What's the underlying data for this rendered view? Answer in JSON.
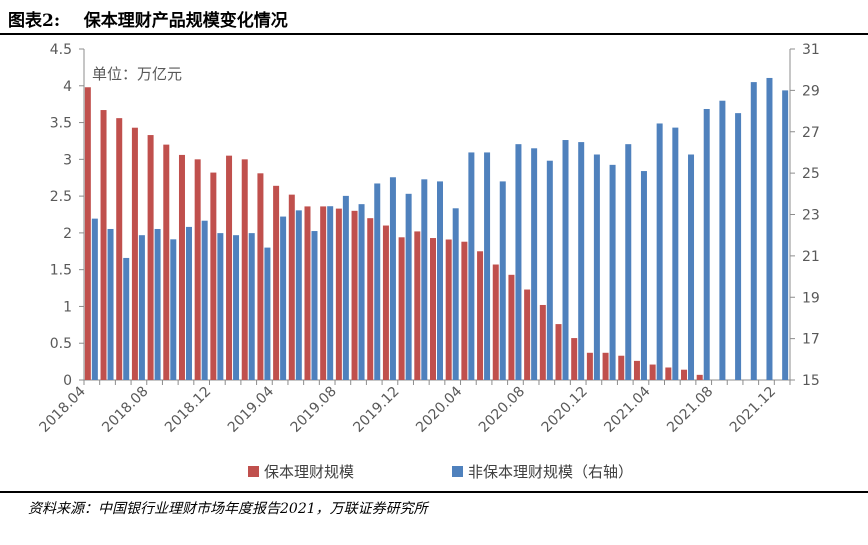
{
  "figure": {
    "title": "图表2:    保本理财产品规模变化情况",
    "source": "资料来源：中国银行业理财市场年度报告2021，万联证券研究所"
  },
  "chart_data": {
    "type": "bar",
    "unit_label": "单位：万亿元",
    "categories": [
      "2018.04",
      "2018.05",
      "2018.06",
      "2018.07",
      "2018.08",
      "2018.09",
      "2018.10",
      "2018.11",
      "2018.12",
      "2019.01",
      "2019.02",
      "2019.03",
      "2019.04",
      "2019.05",
      "2019.06",
      "2019.07",
      "2019.08",
      "2019.09",
      "2019.10",
      "2019.11",
      "2019.12",
      "2020.01",
      "2020.02",
      "2020.03",
      "2020.04",
      "2020.05",
      "2020.06",
      "2020.07",
      "2020.08",
      "2020.09",
      "2020.10",
      "2020.11",
      "2020.12",
      "2021.01",
      "2021.02",
      "2021.03",
      "2021.04",
      "2021.05",
      "2021.06",
      "2021.07",
      "2021.08",
      "2021.09",
      "2021.10",
      "2021.11",
      "2021.12"
    ],
    "x_tick_labels": [
      "2018.04",
      "2018.08",
      "2018.12",
      "2019.04",
      "2019.08",
      "2019.12",
      "2020.04",
      "2020.08",
      "2020.12",
      "2021.04",
      "2021.08",
      "2021.12"
    ],
    "y_left": {
      "min": 0,
      "max": 4.5,
      "step": 0.5,
      "ticks": [
        "0",
        "0.5",
        "1",
        "1.5",
        "2",
        "2.5",
        "3",
        "3.5",
        "4",
        "4.5"
      ]
    },
    "y_right": {
      "min": 15,
      "max": 31,
      "step": 2,
      "ticks": [
        "15",
        "17",
        "19",
        "21",
        "23",
        "25",
        "27",
        "29",
        "31"
      ]
    },
    "series": [
      {
        "name": "保本理财规模",
        "axis": "left",
        "color": "#c0504d",
        "values": [
          3.98,
          3.67,
          3.56,
          3.43,
          3.33,
          3.2,
          3.06,
          3.0,
          2.82,
          3.05,
          3.0,
          2.81,
          2.64,
          2.52,
          2.36,
          2.36,
          2.33,
          2.3,
          2.2,
          2.1,
          1.94,
          2.02,
          1.93,
          1.91,
          1.88,
          1.75,
          1.57,
          1.43,
          1.23,
          1.02,
          0.76,
          0.57,
          0.37,
          0.37,
          0.33,
          0.26,
          0.21,
          0.17,
          0.14,
          0.07,
          0,
          0,
          0,
          0,
          0
        ]
      },
      {
        "name": "非保本理财规模（右轴）",
        "axis": "right",
        "color": "#4f81bd",
        "values": [
          22.8,
          22.3,
          20.9,
          22.0,
          22.3,
          21.8,
          22.4,
          22.7,
          22.1,
          22.0,
          22.1,
          21.4,
          22.9,
          23.2,
          22.2,
          23.4,
          23.9,
          23.5,
          24.5,
          24.8,
          24.0,
          24.7,
          24.6,
          23.3,
          26.0,
          26.0,
          24.6,
          26.4,
          26.2,
          25.6,
          26.6,
          26.5,
          25.9,
          25.4,
          26.4,
          25.1,
          27.4,
          27.2,
          25.9,
          28.1,
          28.5,
          27.9,
          29.4,
          29.6,
          29.0
        ]
      }
    ],
    "grid": false,
    "legend_position": "bottom"
  }
}
